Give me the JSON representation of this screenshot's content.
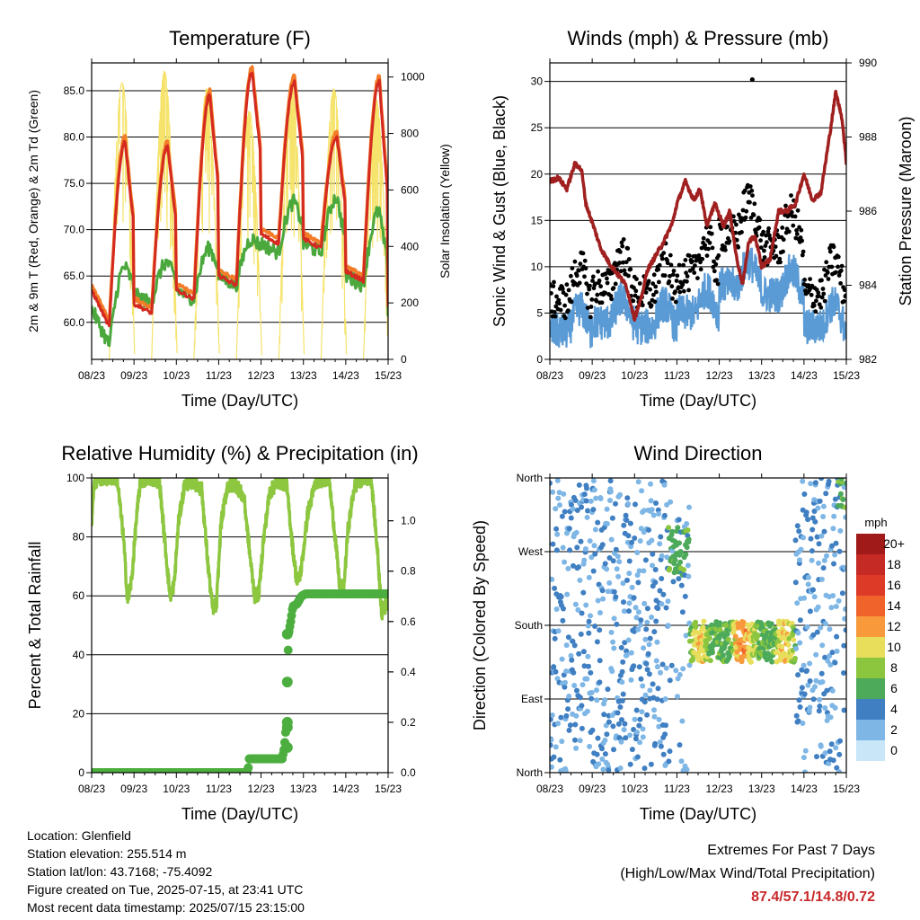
{
  "chart_data": [
    {
      "type": "line",
      "title": "Temperature (F)",
      "xlabel": "Time (Day/UTC)",
      "ylabel": "2m & 9m T (Red, Orange) & 2m Td (Green)",
      "ylabel_right": "Solar Insolation (Yellow)",
      "xlim": [
        0,
        7
      ],
      "ylim": [
        56,
        88
      ],
      "ylim_right": [
        0,
        1050
      ],
      "x_ticks": [
        "08/23",
        "09/23",
        "10/23",
        "11/23",
        "12/23",
        "13/23",
        "14/23",
        "15/23"
      ],
      "y_ticks": [
        "60.0",
        "65.0",
        "70.0",
        "75.0",
        "80.0",
        "85.0"
      ],
      "y_tick_values": [
        60,
        65,
        70,
        75,
        80,
        85
      ],
      "y_ticks_right": [
        "0",
        "200",
        "400",
        "600",
        "800",
        "1000"
      ],
      "y_tick_values_right": [
        0,
        200,
        400,
        600,
        800,
        1000
      ],
      "grid": true,
      "daily": {
        "max_temp": [
          79.5,
          79.0,
          84.5,
          87.0,
          86.0,
          80.0,
          86.0
        ],
        "min_temp": [
          59.5,
          61.0,
          62.5,
          64.0,
          68.5,
          68.0,
          64.5,
          60.5
        ],
        "dewpoint_high": [
          66.0,
          66.5,
          68.0,
          69.0,
          73.0,
          73.5,
          72.0
        ],
        "dewpoint_low": [
          57.5,
          62.0,
          62.5,
          64.0,
          67.5,
          67.5,
          64.0,
          60.0
        ],
        "solar_peak": [
          980,
          1020,
          960,
          880,
          990,
          960,
          920
        ]
      },
      "series": [
        {
          "name": "2m T",
          "color": "#d42a20"
        },
        {
          "name": "9m T",
          "color": "#f37c28"
        },
        {
          "name": "2m Td",
          "color": "#4aa83c"
        },
        {
          "name": "Solar Insolation",
          "color": "#f5e36b"
        }
      ]
    },
    {
      "type": "line",
      "title": "Winds (mph) & Pressure (mb)",
      "xlabel": "Time (Day/UTC)",
      "ylabel": "Sonic Wind & Gust (Blue, Black)",
      "ylabel_right": "Station Pressure (Maroon)",
      "xlim": [
        0,
        7
      ],
      "ylim": [
        0,
        32
      ],
      "ylim_right": [
        982,
        990
      ],
      "x_ticks": [
        "08/23",
        "09/23",
        "10/23",
        "11/23",
        "12/23",
        "13/23",
        "14/23",
        "15/23"
      ],
      "y_ticks": [
        "0",
        "5",
        "10",
        "15",
        "20",
        "25",
        "30"
      ],
      "y_tick_values": [
        0,
        5,
        10,
        15,
        20,
        25,
        30
      ],
      "y_ticks_right": [
        "982",
        "984",
        "986",
        "988",
        "990"
      ],
      "y_tick_values_right": [
        982,
        984,
        986,
        988,
        990
      ],
      "grid": true,
      "pressure_trace": {
        "x": [
          0,
          0.2,
          0.4,
          0.6,
          0.75,
          0.85,
          1.0,
          1.2,
          1.4,
          1.6,
          1.8,
          2.0,
          2.15,
          2.3,
          2.5,
          2.7,
          2.9,
          3.0,
          3.2,
          3.4,
          3.55,
          3.7,
          3.9,
          4.1,
          4.25,
          4.4,
          4.55,
          4.7,
          4.85,
          5.0,
          5.2,
          5.4,
          5.6,
          5.8,
          6.0,
          6.2,
          6.4,
          6.6,
          6.75,
          6.9,
          7.0
        ],
        "y": [
          986.8,
          986.9,
          986.6,
          987.3,
          987.1,
          986.2,
          985.7,
          985.0,
          984.6,
          984.3,
          984.0,
          983.1,
          983.6,
          984.4,
          984.8,
          985.2,
          985.7,
          986.2,
          986.8,
          986.3,
          986.6,
          985.6,
          986.2,
          985.6,
          986.0,
          984.8,
          984.0,
          985.2,
          985.3,
          984.5,
          984.7,
          986.0,
          986.0,
          986.2,
          987.0,
          986.3,
          986.5,
          988.0,
          989.2,
          988.5,
          987.3
        ]
      },
      "gust_max": 30.2,
      "series": [
        {
          "name": "Sonic Wind",
          "color": "#5b9bd5"
        },
        {
          "name": "Gust",
          "color": "#000000"
        },
        {
          "name": "Station Pressure",
          "color": "#a01f1f"
        }
      ]
    },
    {
      "type": "line",
      "title": "Relative Humidity (%) & Precipitation (in)",
      "xlabel": "Time (Day/UTC)",
      "ylabel": "Percent & Total Rainfall",
      "xlim": [
        0,
        7
      ],
      "ylim": [
        0,
        100
      ],
      "ylim_right": [
        0,
        1.17
      ],
      "x_ticks": [
        "08/23",
        "09/23",
        "10/23",
        "11/23",
        "12/23",
        "13/23",
        "14/23",
        "15/23"
      ],
      "y_ticks": [
        "0",
        "20",
        "40",
        "60",
        "80",
        "100"
      ],
      "y_tick_values": [
        0,
        20,
        40,
        60,
        80,
        100
      ],
      "y_ticks_right": [
        "0.0",
        "0.2",
        "0.4",
        "0.6",
        "0.8",
        "1.0"
      ],
      "y_tick_values_right": [
        0,
        0.2,
        0.4,
        0.6,
        0.8,
        1.0
      ],
      "grid": true,
      "rh_trace": {
        "x": [
          0,
          0.05,
          0.15,
          0.3,
          0.6,
          0.75,
          0.85,
          0.95,
          1.05,
          1.15,
          1.4,
          1.6,
          1.75,
          1.85,
          1.95,
          2.05,
          2.2,
          2.4,
          2.6,
          2.75,
          2.85,
          2.95,
          3.05,
          3.2,
          3.4,
          3.6,
          3.75,
          3.85,
          3.95,
          4.05,
          4.2,
          4.4,
          4.6,
          4.75,
          4.85,
          4.95,
          5.1,
          5.3,
          5.6,
          5.75,
          5.85,
          5.95,
          6.05,
          6.2,
          6.4,
          6.6,
          6.75,
          6.85,
          6.95,
          7.0
        ],
        "y": [
          85,
          97,
          100,
          100,
          100,
          80,
          58,
          66,
          85,
          99,
          100,
          99,
          75,
          60,
          64,
          85,
          98,
          99,
          96,
          70,
          56,
          57,
          84,
          97,
          98,
          93,
          72,
          60,
          61,
          78,
          95,
          99,
          98,
          76,
          64,
          69,
          88,
          99,
          100,
          80,
          64,
          62,
          82,
          97,
          100,
          100,
          75,
          54,
          57,
          60
        ]
      },
      "precip_trace": {
        "x": [
          0,
          3.65,
          3.7,
          3.72,
          4.5,
          4.55,
          4.6,
          4.62,
          4.65,
          4.7,
          4.75,
          4.85,
          4.95,
          5.05,
          7.0
        ],
        "y": [
          0,
          0,
          0.02,
          0.055,
          0.055,
          0.1,
          0.2,
          0.36,
          0.55,
          0.6,
          0.66,
          0.67,
          0.7,
          0.71,
          0.71
        ]
      },
      "series": [
        {
          "name": "Relative Humidity",
          "color": "#8dc63f"
        },
        {
          "name": "Precipitation",
          "color": "#4cae3f"
        }
      ]
    },
    {
      "type": "scatter",
      "title": "Wind Direction",
      "xlabel": "Time (Day/UTC)",
      "ylabel": "Direction (Colored By Speed)",
      "xlim": [
        0,
        7
      ],
      "ylim": [
        0,
        360
      ],
      "x_ticks": [
        "08/23",
        "09/23",
        "10/23",
        "11/23",
        "12/23",
        "13/23",
        "14/23",
        "15/23"
      ],
      "y_ticks": [
        "North",
        "East",
        "South",
        "West",
        "North"
      ],
      "y_tick_values": [
        0,
        90,
        180,
        270,
        360
      ],
      "grid": true,
      "colorbar": {
        "title": "mph",
        "labels": [
          "20+",
          "18",
          "16",
          "14",
          "12",
          "10",
          "8",
          "6",
          "4",
          "2",
          "0"
        ],
        "colors": [
          "#a11a1a",
          "#c52a24",
          "#dd3a28",
          "#f0642c",
          "#f89a3c",
          "#e8de5c",
          "#8cc63f",
          "#4caa5a",
          "#3f7fc2",
          "#7eb6e6",
          "#c8e6f7"
        ]
      }
    }
  ],
  "info": {
    "location": "Location: Glenfield",
    "elevation": "Station elevation: 255.514 m",
    "latlon": "Station lat/lon: 43.7168; -75.4092",
    "created": "Figure created on Tue, 2025-07-15, at 23:41 UTC",
    "recent": "Most recent data timestamp: 2025/07/15 23:15:00"
  },
  "extremes": {
    "title": "Extremes For Past 7 Days",
    "subtitle": "(High/Low/Max Wind/Total Precipitation)",
    "values": "87.4/57.1/14.8/0.72"
  }
}
